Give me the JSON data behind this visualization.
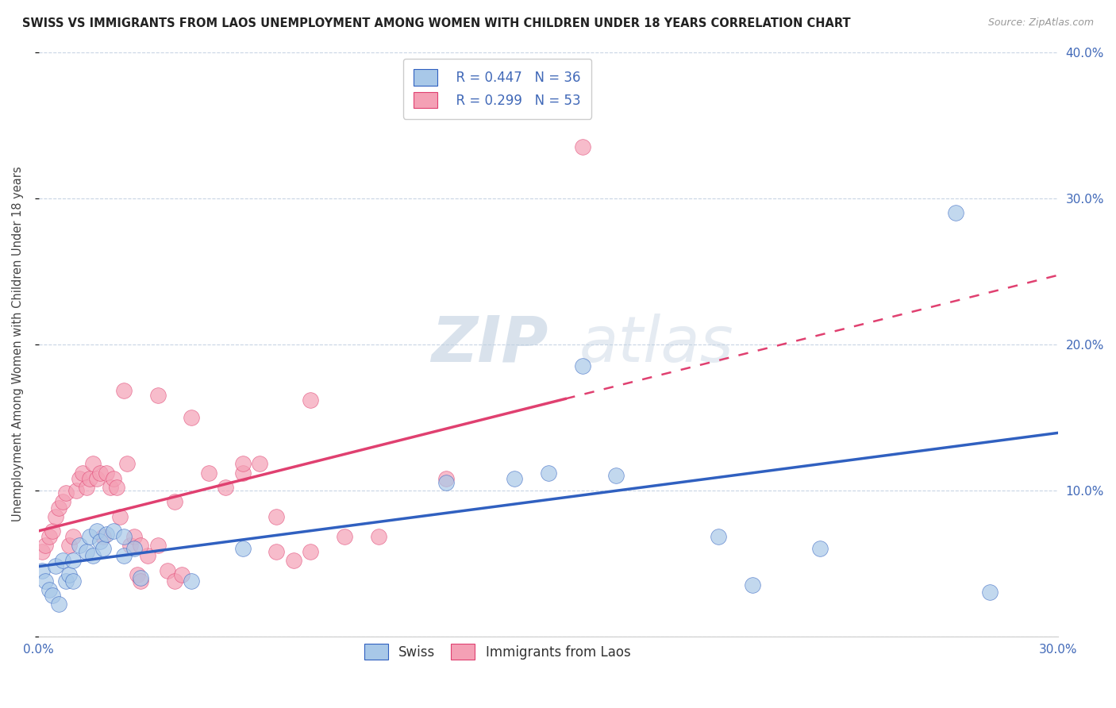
{
  "title": "SWISS VS IMMIGRANTS FROM LAOS UNEMPLOYMENT AMONG WOMEN WITH CHILDREN UNDER 18 YEARS CORRELATION CHART",
  "source": "Source: ZipAtlas.com",
  "ylabel": "Unemployment Among Women with Children Under 18 years",
  "xlim": [
    0.0,
    0.3
  ],
  "ylim": [
    0.0,
    0.4
  ],
  "xticks": [
    0.0,
    0.05,
    0.1,
    0.15,
    0.2,
    0.25,
    0.3
  ],
  "yticks": [
    0.0,
    0.1,
    0.2,
    0.3,
    0.4
  ],
  "ytick_labels_right": [
    "",
    "10.0%",
    "20.0%",
    "30.0%",
    "40.0%"
  ],
  "xtick_labels": [
    "0.0%",
    "",
    "",
    "",
    "",
    "",
    "30.0%"
  ],
  "swiss_R": 0.447,
  "swiss_N": 36,
  "laos_R": 0.299,
  "laos_N": 53,
  "swiss_color": "#a8c8e8",
  "laos_color": "#f4a0b5",
  "swiss_line_color": "#3060c0",
  "laos_line_color": "#e04070",
  "background_color": "#ffffff",
  "grid_color": "#c8d4e4",
  "swiss_x": [
    0.001,
    0.002,
    0.003,
    0.004,
    0.005,
    0.006,
    0.007,
    0.008,
    0.009,
    0.01,
    0.01,
    0.012,
    0.014,
    0.015,
    0.016,
    0.017,
    0.018,
    0.019,
    0.02,
    0.022,
    0.025,
    0.025,
    0.028,
    0.03,
    0.045,
    0.06,
    0.12,
    0.14,
    0.15,
    0.16,
    0.17,
    0.2,
    0.21,
    0.23,
    0.27,
    0.28
  ],
  "swiss_y": [
    0.045,
    0.038,
    0.032,
    0.028,
    0.048,
    0.022,
    0.052,
    0.038,
    0.042,
    0.052,
    0.038,
    0.062,
    0.058,
    0.068,
    0.055,
    0.072,
    0.065,
    0.06,
    0.07,
    0.072,
    0.055,
    0.068,
    0.06,
    0.04,
    0.038,
    0.06,
    0.105,
    0.108,
    0.112,
    0.185,
    0.11,
    0.068,
    0.035,
    0.06,
    0.29,
    0.03
  ],
  "laos_x": [
    0.001,
    0.002,
    0.003,
    0.004,
    0.005,
    0.006,
    0.007,
    0.008,
    0.009,
    0.01,
    0.011,
    0.012,
    0.013,
    0.014,
    0.015,
    0.016,
    0.017,
    0.018,
    0.019,
    0.02,
    0.021,
    0.022,
    0.023,
    0.024,
    0.025,
    0.026,
    0.027,
    0.028,
    0.029,
    0.03,
    0.032,
    0.035,
    0.038,
    0.04,
    0.042,
    0.045,
    0.05,
    0.055,
    0.06,
    0.065,
    0.07,
    0.075,
    0.08,
    0.09,
    0.1,
    0.03,
    0.04,
    0.06,
    0.08,
    0.12,
    0.16,
    0.035,
    0.07
  ],
  "laos_y": [
    0.058,
    0.062,
    0.068,
    0.072,
    0.082,
    0.088,
    0.092,
    0.098,
    0.062,
    0.068,
    0.1,
    0.108,
    0.112,
    0.102,
    0.108,
    0.118,
    0.108,
    0.112,
    0.068,
    0.112,
    0.102,
    0.108,
    0.102,
    0.082,
    0.168,
    0.118,
    0.062,
    0.068,
    0.042,
    0.038,
    0.055,
    0.062,
    0.045,
    0.038,
    0.042,
    0.15,
    0.112,
    0.102,
    0.112,
    0.118,
    0.058,
    0.052,
    0.058,
    0.068,
    0.068,
    0.062,
    0.092,
    0.118,
    0.162,
    0.108,
    0.335,
    0.165,
    0.082
  ],
  "watermark_zip": "ZIP",
  "watermark_atlas": "atlas"
}
